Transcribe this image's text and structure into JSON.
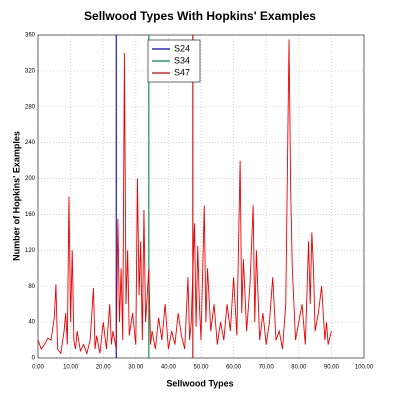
{
  "chart_data": {
    "type": "line",
    "title": "Sellwood Types With Hopkins' Examples",
    "x_label": "Sellwood Types",
    "y_label": "Number of Hopkins' Examples",
    "xlim": [
      0,
      100
    ],
    "ylim": [
      0,
      360
    ],
    "xticks": [
      {
        "value": 0,
        "label": "0.00"
      },
      {
        "value": 10,
        "label": "10.00"
      },
      {
        "value": 20,
        "label": "20.00"
      },
      {
        "value": 30,
        "label": "30.00"
      },
      {
        "value": 40,
        "label": "40.00"
      },
      {
        "value": 50,
        "label": "50.00"
      },
      {
        "value": 60,
        "label": "60.00"
      },
      {
        "value": 70,
        "label": "70.00"
      },
      {
        "value": 80,
        "label": "80.00"
      },
      {
        "value": 90,
        "label": "90.00"
      },
      {
        "value": 100,
        "label": "100.00"
      }
    ],
    "yticks": [
      0,
      40,
      80,
      120,
      160,
      200,
      240,
      280,
      320,
      360
    ],
    "grid": true,
    "legend": "top",
    "series": [
      {
        "name": "S24",
        "color": "#0000cc",
        "x": [
          24,
          24
        ],
        "values": [
          0,
          360
        ]
      },
      {
        "name": "S34",
        "color": "#008844",
        "x": [
          34,
          34
        ],
        "values": [
          0,
          360
        ]
      },
      {
        "name": "S47",
        "color": "#cc0000",
        "x": [
          47.5,
          47.5
        ],
        "values": [
          0,
          360
        ]
      },
      {
        "color": "#ee0000",
        "x": [
          0,
          1,
          2,
          3,
          4,
          5,
          5.5,
          6,
          7,
          8,
          8.5,
          9,
          9.5,
          10,
          10.5,
          11,
          11.5,
          12,
          13,
          14,
          15,
          16,
          17,
          17.5,
          18,
          19,
          20,
          21,
          22,
          22.5,
          23,
          24,
          24.5,
          25,
          25.5,
          26,
          26.5,
          27,
          27.5,
          28,
          29,
          30,
          30.5,
          31,
          31.5,
          32,
          32.5,
          33,
          34,
          34.5,
          35,
          36,
          37,
          38,
          39,
          40,
          41,
          42,
          43,
          44,
          45,
          46,
          46.5,
          47,
          48,
          48.5,
          49,
          49.5,
          50,
          51,
          51.5,
          52,
          53,
          54,
          55,
          56,
          57,
          58,
          59,
          60,
          61,
          62,
          62.5,
          63,
          64,
          65,
          66,
          66.5,
          67,
          68,
          69,
          70,
          71,
          72,
          73,
          74,
          75,
          76,
          77,
          77.5,
          78,
          79,
          80,
          81,
          82,
          83,
          83.5,
          84,
          84.5,
          85,
          86,
          87,
          88,
          88.5,
          89,
          90
        ],
        "values": [
          20,
          10,
          15,
          22,
          20,
          45,
          82,
          10,
          5,
          30,
          50,
          15,
          180,
          40,
          120,
          20,
          10,
          30,
          8,
          15,
          5,
          20,
          78,
          10,
          25,
          5,
          40,
          10,
          60,
          15,
          30,
          10,
          155,
          40,
          100,
          20,
          340,
          60,
          120,
          25,
          50,
          15,
          200,
          70,
          130,
          20,
          165,
          40,
          100,
          15,
          30,
          10,
          45,
          20,
          60,
          10,
          30,
          15,
          50,
          25,
          10,
          90,
          20,
          40,
          150,
          35,
          125,
          60,
          20,
          170,
          40,
          100,
          30,
          60,
          15,
          40,
          20,
          60,
          30,
          90,
          25,
          220,
          50,
          110,
          30,
          80,
          170,
          40,
          120,
          20,
          50,
          15,
          40,
          90,
          20,
          30,
          10,
          60,
          355,
          190,
          100,
          20,
          40,
          60,
          15,
          130,
          60,
          140,
          100,
          30,
          50,
          80,
          20,
          40,
          15,
          30
        ]
      }
    ]
  }
}
